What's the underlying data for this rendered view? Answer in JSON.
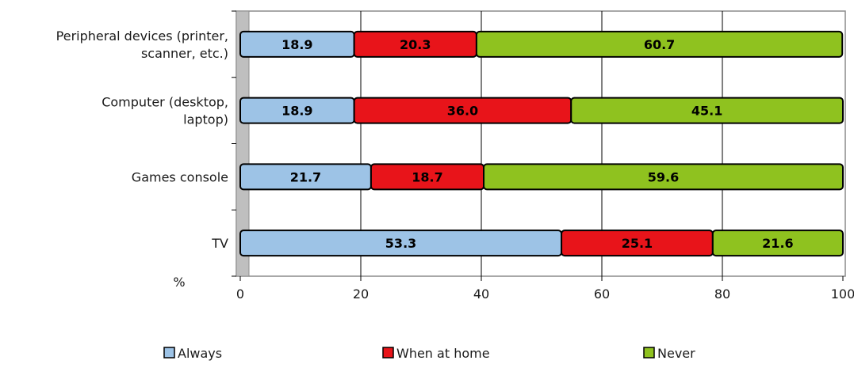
{
  "chart_data": {
    "type": "bar",
    "orientation": "horizontal",
    "stacked": true,
    "categories": [
      [
        "Peripheral devices (printer,",
        "scanner, etc.)"
      ],
      [
        "Computer (desktop,",
        "laptop)"
      ],
      [
        "Games console"
      ],
      [
        "TV"
      ]
    ],
    "series": [
      {
        "name": "Always",
        "color": "#9dc3e6",
        "values": [
          18.9,
          18.9,
          21.7,
          53.3
        ]
      },
      {
        "name": "When at home",
        "color": "#e8141a",
        "values": [
          20.3,
          36.0,
          18.7,
          25.1
        ]
      },
      {
        "name": "Never",
        "color": "#8fc21f",
        "values": [
          60.7,
          45.1,
          59.6,
          21.6
        ]
      }
    ],
    "xlabel": "%",
    "xlim": [
      0,
      100
    ],
    "xticks": [
      "0",
      "20",
      "40",
      "60",
      "80",
      "100"
    ],
    "grid": true,
    "legend_position": "bottom"
  }
}
